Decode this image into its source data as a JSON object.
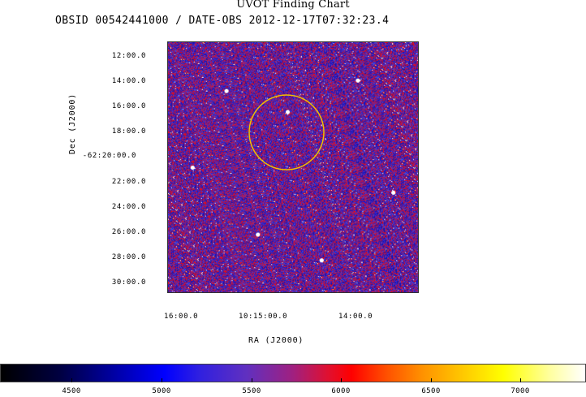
{
  "header": {
    "title": "UVOT Finding Chart",
    "subtitle": "OBSID 00542441000 / DATE-OBS 2012-12-17T07:32:23.4"
  },
  "axes": {
    "dec_label": "Dec  (J2000)",
    "ra_label": "RA  (J2000)",
    "dec_ticks": [
      "12:00.0",
      "14:00.0",
      "16:00.0",
      "18:00.0",
      "-62:20:00.0",
      "22:00.0",
      "24:00.0",
      "26:00.0",
      "28:00.0",
      "30:00.0"
    ],
    "ra_ticks": [
      "16:00.0",
      "10:15:00.0",
      "14:00.0"
    ]
  },
  "colorbar": {
    "ticks": [
      "4500",
      "5000",
      "5500",
      "6000",
      "6500",
      "7000"
    ]
  },
  "colors": {
    "ring": "#f0c000",
    "background_noise": "#3a1a9a"
  }
}
